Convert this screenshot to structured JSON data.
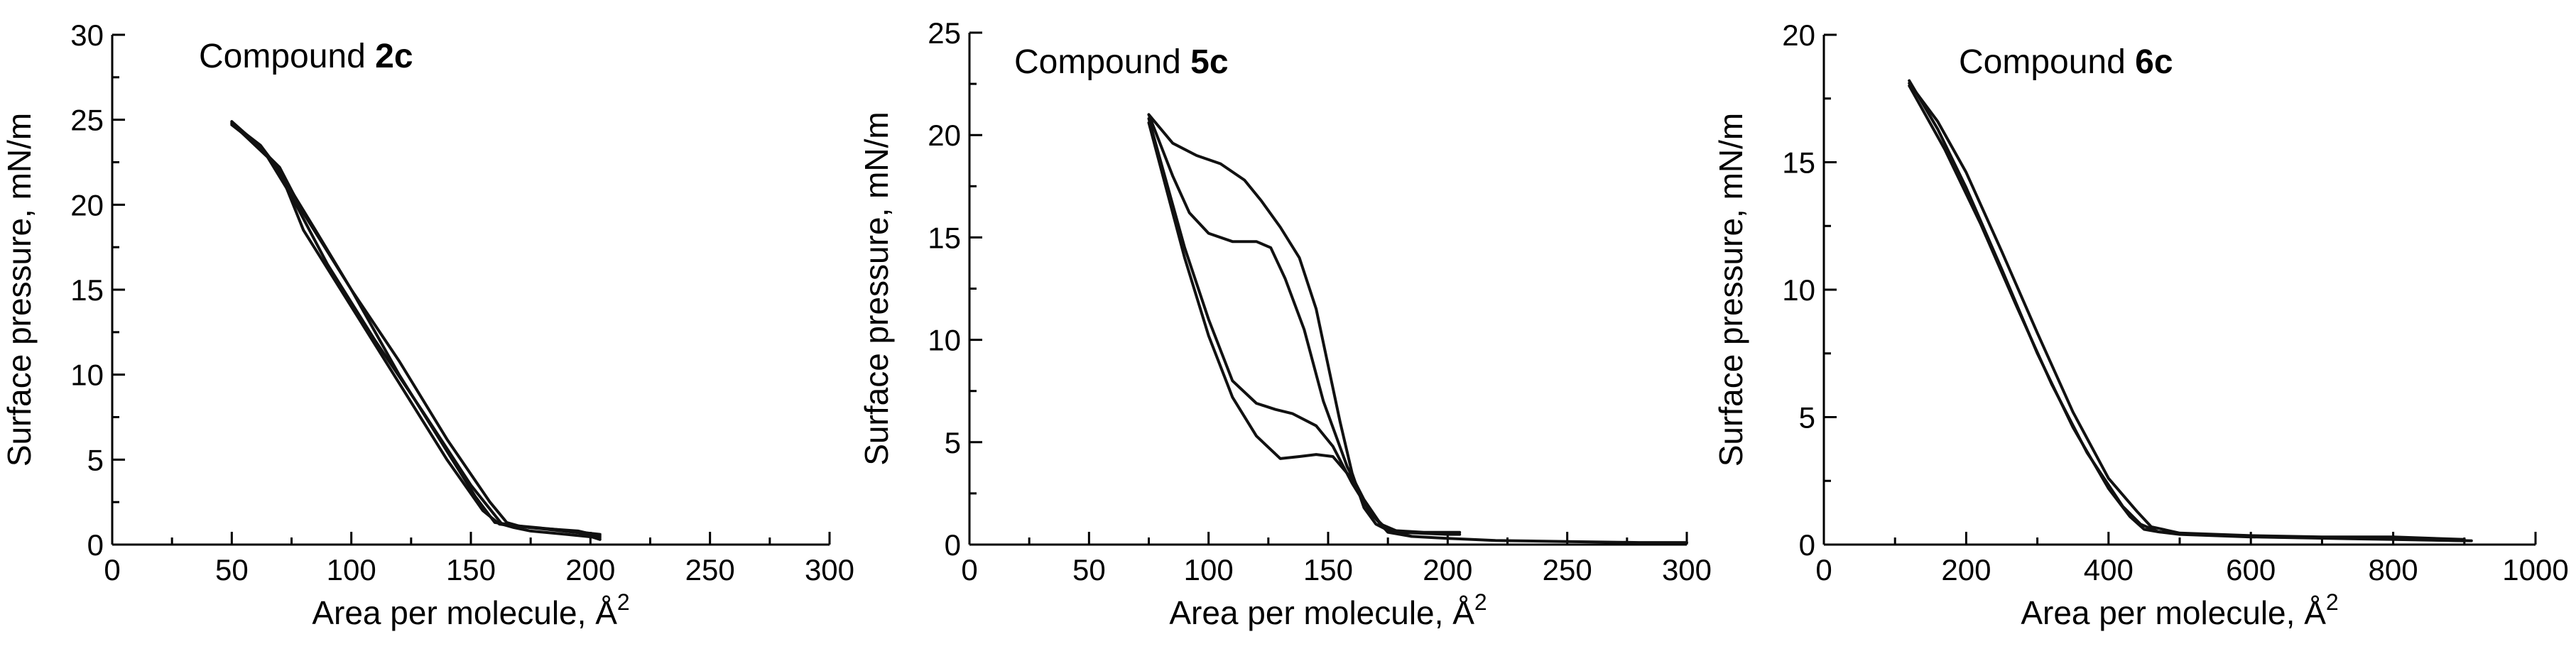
{
  "chart_data": [
    {
      "type": "line",
      "title": "Compound",
      "title_bold": "2c",
      "xlabel": "Area per molecule, Å",
      "xlabel_sup": "2",
      "ylabel": "Surface pressure, mN/m",
      "xlim": [
        0,
        300
      ],
      "ylim": [
        0,
        30
      ],
      "xticks": [
        0,
        50,
        100,
        150,
        200,
        250,
        300
      ],
      "yticks": [
        0,
        5,
        10,
        15,
        20,
        25,
        30
      ],
      "xtick_labels": [
        "0",
        "50",
        "100",
        "150",
        "200",
        "250",
        "300"
      ],
      "ytick_labels": [
        "0",
        "5",
        "10",
        "15",
        "20",
        "25",
        "30"
      ],
      "grid": false,
      "series": [
        {
          "x": [
            204,
            190,
            175,
            168,
            163,
            150,
            130,
            110,
            90,
            75,
            65,
            50
          ],
          "y": [
            0.4,
            0.6,
            0.8,
            1.0,
            1.2,
            3.5,
            7.8,
            12.0,
            16.5,
            20.5,
            22.8,
            24.8
          ]
        },
        {
          "x": [
            50,
            62,
            70,
            80,
            100,
            120,
            140,
            155,
            162,
            175,
            195,
            204
          ],
          "y": [
            24.8,
            23.5,
            22.0,
            18.5,
            14.0,
            9.5,
            5.0,
            2.0,
            1.2,
            1.0,
            0.8,
            0.5
          ]
        },
        {
          "x": [
            204,
            185,
            170,
            165,
            158,
            140,
            120,
            100,
            85,
            72,
            62,
            50
          ],
          "y": [
            0.6,
            0.9,
            1.1,
            1.3,
            2.5,
            6.2,
            10.8,
            15.0,
            18.5,
            21.5,
            23.4,
            24.9
          ]
        },
        {
          "x": [
            50,
            60,
            70,
            80,
            100,
            120,
            140,
            152,
            160,
            175,
            195,
            204
          ],
          "y": [
            24.7,
            23.6,
            22.2,
            19.5,
            15.0,
            10.0,
            5.5,
            2.8,
            1.3,
            1.0,
            0.7,
            0.3
          ]
        }
      ]
    },
    {
      "type": "line",
      "title": "Compound",
      "title_bold": "5c",
      "xlabel": "Area per molecule, Å",
      "xlabel_sup": "2",
      "ylabel": "Surface pressure, mN/m",
      "xlim": [
        0,
        300
      ],
      "ylim": [
        0,
        25
      ],
      "xticks": [
        0,
        50,
        100,
        150,
        200,
        250,
        300
      ],
      "yticks": [
        0,
        5,
        10,
        15,
        20,
        25
      ],
      "xtick_labels": [
        "0",
        "50",
        "100",
        "150",
        "200",
        "250",
        "300"
      ],
      "ytick_labels": [
        "0",
        "5",
        "10",
        "15",
        "20",
        "25"
      ],
      "grid": false,
      "series": [
        {
          "x": [
            205,
            190,
            175,
            170,
            165,
            160,
            155,
            145,
            138,
            130,
            122,
            115,
            105,
            95,
            85,
            75
          ],
          "y": [
            0.6,
            0.6,
            0.7,
            1.0,
            1.8,
            3.5,
            6.0,
            11.5,
            14.0,
            15.5,
            16.8,
            17.8,
            18.6,
            19.0,
            19.6,
            21.0
          ]
        },
        {
          "x": [
            75,
            85,
            92,
            100,
            110,
            120,
            126,
            132,
            140,
            148,
            158,
            165,
            172,
            180,
            200,
            205
          ],
          "y": [
            21.0,
            18.0,
            16.2,
            15.2,
            14.8,
            14.8,
            14.5,
            13.0,
            10.5,
            7.0,
            3.8,
            2.2,
            1.0,
            0.6,
            0.5,
            0.5
          ]
        },
        {
          "x": [
            75,
            90,
            100,
            110,
            120,
            128,
            135,
            145,
            152,
            160,
            168,
            175,
            185
          ],
          "y": [
            20.8,
            14.5,
            11.0,
            8.0,
            6.9,
            6.6,
            6.4,
            5.8,
            4.8,
            3.0,
            1.5,
            0.7,
            0.4
          ]
        },
        {
          "x": [
            185,
            175,
            168,
            160,
            152,
            145,
            138,
            130,
            120,
            110,
            100,
            90,
            75
          ],
          "y": [
            0.4,
            0.6,
            1.5,
            3.2,
            4.3,
            4.4,
            4.3,
            4.2,
            5.3,
            7.2,
            10.2,
            14.0,
            20.6
          ]
        },
        {
          "x": [
            185,
            200,
            220,
            250,
            280,
            300
          ],
          "y": [
            0.4,
            0.3,
            0.2,
            0.15,
            0.1,
            0.1
          ]
        }
      ]
    },
    {
      "type": "line",
      "title": "Compound",
      "title_bold": "6c",
      "xlabel": "Area per molecule, Å",
      "xlabel_sup": "2",
      "ylabel": "Surface pressure, mN/m",
      "xlim": [
        0,
        1000
      ],
      "ylim": [
        0,
        20
      ],
      "xticks": [
        0,
        200,
        400,
        600,
        800,
        1000
      ],
      "yticks": [
        0,
        5,
        10,
        15,
        20
      ],
      "xtick_labels": [
        "0",
        "200",
        "400",
        "600",
        "800",
        "1000"
      ],
      "ytick_labels": [
        "0",
        "5",
        "10",
        "15",
        "20"
      ],
      "grid": false,
      "series": [
        {
          "x": [
            120,
            160,
            200,
            250,
            300,
            350,
            400,
            430,
            450,
            470,
            500,
            600,
            700,
            800,
            900
          ],
          "y": [
            18.2,
            16.3,
            14.0,
            10.8,
            7.5,
            4.6,
            2.2,
            1.1,
            0.6,
            0.5,
            0.4,
            0.3,
            0.25,
            0.2,
            0.15
          ]
        },
        {
          "x": [
            900,
            800,
            700,
            600,
            500,
            460,
            440,
            400,
            350,
            300,
            250,
            200,
            160,
            120
          ],
          "y": [
            0.2,
            0.3,
            0.3,
            0.35,
            0.45,
            0.7,
            1.3,
            2.6,
            5.2,
            8.3,
            11.5,
            14.6,
            16.6,
            18.1
          ]
        },
        {
          "x": [
            120,
            170,
            220,
            270,
            320,
            370,
            420,
            445,
            470,
            520,
            620,
            720,
            820,
            910
          ],
          "y": [
            18.0,
            15.5,
            12.6,
            9.4,
            6.3,
            3.6,
            1.5,
            0.8,
            0.5,
            0.4,
            0.3,
            0.25,
            0.2,
            0.15
          ]
        }
      ]
    }
  ]
}
